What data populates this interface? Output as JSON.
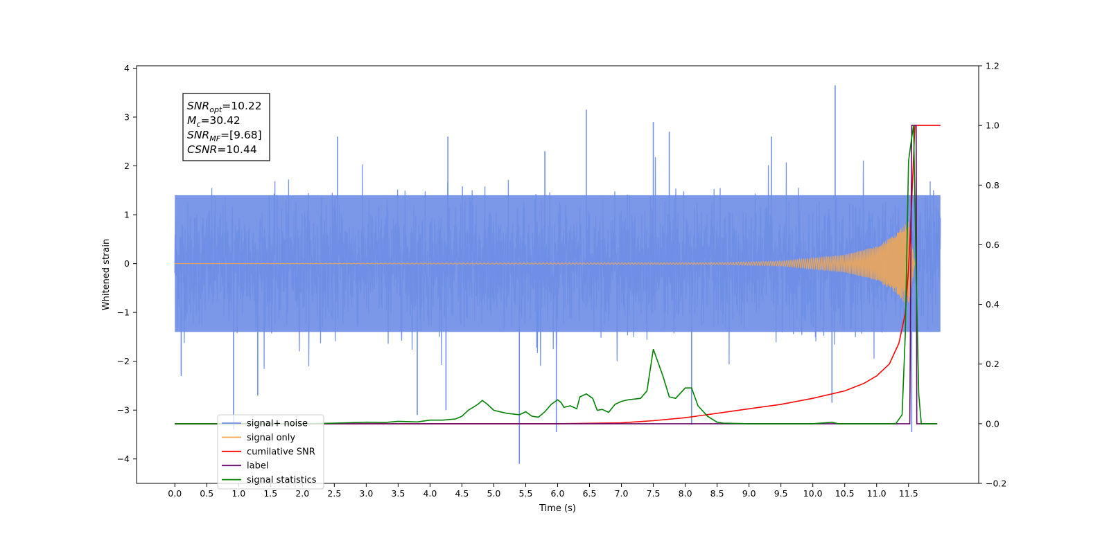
{
  "chart_data": {
    "type": "line",
    "xlabel": "Time (s)",
    "ylabel": "Whitened strain",
    "xlim": [
      -0.6,
      12.6
    ],
    "ylim_left": [
      -4.5,
      4.05
    ],
    "ylim_right": [
      -0.2,
      1.2
    ],
    "x_ticks": [
      0.0,
      0.5,
      1.0,
      1.5,
      2.0,
      2.5,
      3.0,
      3.5,
      4.0,
      4.5,
      5.0,
      5.5,
      6.0,
      6.5,
      7.0,
      7.5,
      8.0,
      8.5,
      9.0,
      9.5,
      10.0,
      10.5,
      11.0,
      11.5
    ],
    "x_tick_labels": [
      "0.0",
      "0.5",
      "1.0",
      "1.5",
      "2.0",
      "2.5",
      "3.0",
      "3.5",
      "4.0",
      "4.5",
      "5.0",
      "5.5",
      "6.0",
      "6.5",
      "7.0",
      "7.5",
      "8.0",
      "8.5",
      "9.0",
      "9.5",
      "10.0",
      "10.5",
      "11.0",
      "11.5"
    ],
    "y_ticks_left": [
      4,
      3,
      2,
      1,
      0,
      -1,
      -2,
      -3,
      -4
    ],
    "y_tick_labels_left": [
      "4",
      "3",
      "2",
      "1",
      "0",
      "−1",
      "−2",
      "−3",
      "−4"
    ],
    "y_ticks_right": [
      1.2,
      1.0,
      0.8,
      0.6,
      0.4,
      0.2,
      0.0,
      -0.2
    ],
    "y_tick_labels_right": [
      "1.2",
      "1.0",
      "0.8",
      "0.6",
      "0.4",
      "0.2",
      "0.0",
      "−0.2"
    ],
    "grid": false,
    "legend_position": "lower-left",
    "annotation": {
      "lines": [
        {
          "symbol": "SNR",
          "sub": "opt",
          "value": "=10.22"
        },
        {
          "symbol": "M",
          "sub": "c",
          "value": "=30.42"
        },
        {
          "symbol": "SNR",
          "sub": "MF",
          "value": "=[9.68]"
        },
        {
          "symbol": "CSNR",
          "sub": "",
          "value": "=10.44"
        }
      ]
    },
    "series": [
      {
        "name": "signal+ noise",
        "axis": "left",
        "color": "#6f8ee6",
        "kind": "noise_band",
        "envelope_typical": 1.4,
        "envelope_max": 2.2,
        "x_range": [
          0.0,
          12.0
        ],
        "spikes": [
          {
            "x": 0.92,
            "y": -3.4
          },
          {
            "x": 1.3,
            "y": -2.7
          },
          {
            "x": 3.8,
            "y": -3.1
          },
          {
            "x": 4.28,
            "y": 2.6
          },
          {
            "x": 4.25,
            "y": -3.0
          },
          {
            "x": 5.4,
            "y": -4.1
          },
          {
            "x": 5.98,
            "y": -3.45
          },
          {
            "x": 5.8,
            "y": 2.3
          },
          {
            "x": 6.45,
            "y": 3.15
          },
          {
            "x": 7.5,
            "y": 2.9
          },
          {
            "x": 7.75,
            "y": 2.7
          },
          {
            "x": 8.1,
            "y": -3.3
          },
          {
            "x": 9.35,
            "y": 2.6
          },
          {
            "x": 10.3,
            "y": -2.85
          },
          {
            "x": 10.35,
            "y": 3.65
          },
          {
            "x": 11.55,
            "y": -3.45
          },
          {
            "x": 0.1,
            "y": -2.3
          },
          {
            "x": 2.55,
            "y": 2.6
          }
        ]
      },
      {
        "name": "signal only",
        "axis": "left",
        "color": "#f5a84f",
        "kind": "chirp",
        "x_range": [
          0.0,
          11.6
        ],
        "points": [
          [
            0.0,
            0.0
          ],
          [
            8.5,
            0.02
          ],
          [
            9.5,
            0.05
          ],
          [
            10.5,
            0.18
          ],
          [
            11.0,
            0.35
          ],
          [
            11.3,
            0.6
          ],
          [
            11.5,
            0.9
          ],
          [
            11.6,
            0.0
          ]
        ]
      },
      {
        "name": "cumilative SNR",
        "axis": "right",
        "color": "#ff0000",
        "x": [
          0.0,
          6.0,
          7.0,
          7.5,
          8.0,
          8.5,
          9.0,
          9.5,
          10.0,
          10.5,
          10.8,
          11.0,
          11.2,
          11.35,
          11.45,
          11.5,
          11.55,
          11.6,
          11.65,
          12.0
        ],
        "values": [
          0.0,
          0.0,
          0.003,
          0.01,
          0.02,
          0.035,
          0.05,
          0.065,
          0.085,
          0.11,
          0.135,
          0.16,
          0.2,
          0.27,
          0.37,
          0.52,
          0.75,
          1.0,
          1.0,
          1.0
        ]
      },
      {
        "name": "label",
        "axis": "right",
        "color": "#6a0d6a",
        "x": [
          0.0,
          11.52,
          11.55,
          11.62,
          11.63,
          11.95
        ],
        "values": [
          0.0,
          0.0,
          1.0,
          1.0,
          0.0,
          0.0
        ]
      },
      {
        "name": "signal statistics",
        "axis": "right",
        "color": "#008000",
        "x": [
          0.0,
          0.5,
          1.0,
          1.5,
          2.0,
          2.5,
          3.0,
          3.3,
          3.5,
          3.8,
          4.0,
          4.2,
          4.4,
          4.5,
          4.6,
          4.75,
          4.82,
          4.9,
          5.0,
          5.2,
          5.4,
          5.5,
          5.6,
          5.7,
          5.8,
          5.9,
          6.0,
          6.05,
          6.1,
          6.2,
          6.3,
          6.35,
          6.45,
          6.55,
          6.62,
          6.7,
          6.8,
          6.9,
          7.0,
          7.1,
          7.3,
          7.4,
          7.5,
          7.55,
          7.65,
          7.75,
          7.85,
          8.0,
          8.1,
          8.2,
          8.35,
          8.5,
          8.6,
          9.0,
          10.0,
          10.3,
          10.4,
          11.0,
          11.3,
          11.4,
          11.45,
          11.5,
          11.55,
          11.58,
          11.62,
          11.66,
          11.7,
          11.75,
          11.95
        ],
        "values": [
          0.0,
          0.0,
          0.0,
          0.0,
          0.0,
          0.002,
          0.005,
          0.004,
          0.008,
          0.006,
          0.012,
          0.012,
          0.016,
          0.025,
          0.045,
          0.065,
          0.078,
          0.065,
          0.045,
          0.035,
          0.03,
          0.04,
          0.025,
          0.022,
          0.04,
          0.065,
          0.08,
          0.072,
          0.055,
          0.06,
          0.05,
          0.09,
          0.1,
          0.085,
          0.045,
          0.048,
          0.038,
          0.065,
          0.075,
          0.08,
          0.085,
          0.11,
          0.25,
          0.22,
          0.16,
          0.09,
          0.085,
          0.12,
          0.12,
          0.06,
          0.025,
          0.005,
          0.002,
          0.0,
          0.0,
          0.005,
          0.0,
          0.0,
          0.0,
          0.03,
          0.3,
          0.88,
          0.96,
          1.0,
          0.5,
          0.1,
          0.0,
          0.0,
          0.0
        ]
      }
    ],
    "legend": [
      {
        "label": "signal+ noise",
        "color": "#6f8ee6"
      },
      {
        "label": "signal only",
        "color": "#f5a84f"
      },
      {
        "label": "cumilative SNR",
        "color": "#ff0000"
      },
      {
        "label": "label",
        "color": "#6a0d6a"
      },
      {
        "label": "signal statistics",
        "color": "#008000"
      }
    ]
  }
}
